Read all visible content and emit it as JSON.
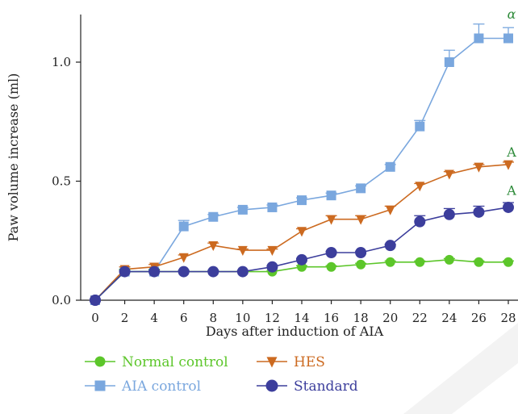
{
  "chart_data": {
    "type": "line",
    "xlabel": "Days after induction of AIA",
    "ylabel": "Paw volume increase (ml)",
    "xlim": [
      0,
      28
    ],
    "ylim": [
      0,
      1.2
    ],
    "x_ticks": [
      0,
      2,
      4,
      6,
      8,
      10,
      12,
      14,
      16,
      18,
      20,
      22,
      24,
      26,
      28
    ],
    "y_ticks": [
      0.0,
      0.5,
      1.0
    ],
    "y_tick_labels": [
      "0.0",
      "0.5",
      "1.0"
    ],
    "grid": false,
    "legend_position": "bottom-left",
    "x": [
      0,
      2,
      4,
      6,
      8,
      10,
      12,
      14,
      16,
      18,
      20,
      22,
      24,
      26,
      28
    ],
    "series": [
      {
        "name": "Normal control",
        "color": "#5cc62a",
        "marker": "circle",
        "values": [
          0,
          0.12,
          0.12,
          0.12,
          0.12,
          0.12,
          0.12,
          0.14,
          0.14,
          0.15,
          0.16,
          0.16,
          0.17,
          0.16,
          0.16
        ],
        "errors": [
          0,
          0.01,
          0.01,
          0.005,
          0.005,
          0.005,
          0.005,
          0.005,
          0.005,
          0.005,
          0.005,
          0.005,
          0.005,
          0.005,
          0.005
        ]
      },
      {
        "name": "AIA control",
        "color": "#7aa7de",
        "marker": "square",
        "values": [
          0,
          0.12,
          0.12,
          0.31,
          0.35,
          0.38,
          0.39,
          0.42,
          0.44,
          0.47,
          0.56,
          0.73,
          1.0,
          1.1,
          1.1
        ],
        "errors": [
          0,
          0.01,
          0.01,
          0.025,
          0.01,
          0.01,
          0.01,
          0.01,
          0.01,
          0.01,
          0.01,
          0.025,
          0.05,
          0.06,
          0.045
        ]
      },
      {
        "name": "HES",
        "color": "#cc6a20",
        "marker": "triangle-down",
        "values": [
          0,
          0.13,
          0.14,
          0.18,
          0.23,
          0.21,
          0.21,
          0.29,
          0.34,
          0.34,
          0.38,
          0.48,
          0.53,
          0.56,
          0.57
        ],
        "errors": [
          0,
          0.01,
          0.01,
          0.01,
          0.01,
          0.005,
          0.005,
          0.01,
          0.015,
          0.015,
          0.015,
          0.01,
          0.01,
          0.01,
          0.01
        ]
      },
      {
        "name": "Standard",
        "color": "#3c3e9c",
        "marker": "circle",
        "values": [
          0,
          0.12,
          0.12,
          0.12,
          0.12,
          0.12,
          0.14,
          0.17,
          0.2,
          0.2,
          0.23,
          0.33,
          0.36,
          0.37,
          0.39
        ],
        "errors": [
          0,
          0.005,
          0.005,
          0.005,
          0.005,
          0.005,
          0.005,
          0.005,
          0.005,
          0.005,
          0.005,
          0.025,
          0.025,
          0.025,
          0.02
        ]
      }
    ],
    "annotations": [
      {
        "text": "α",
        "x": 28,
        "y": 1.2,
        "color": "#2e8b3a"
      },
      {
        "text": "A",
        "x": 28,
        "y": 0.62,
        "color": "#2e8b3a"
      },
      {
        "text": "A",
        "x": 28,
        "y": 0.46,
        "color": "#2e8b3a"
      }
    ]
  }
}
